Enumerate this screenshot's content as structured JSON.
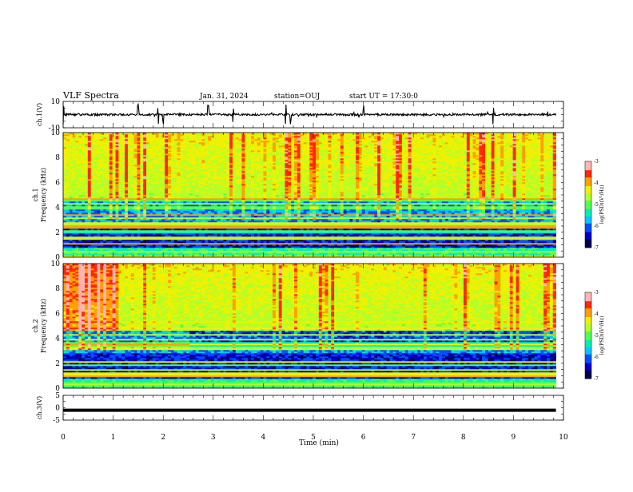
{
  "header": {
    "title": "VLF Spectra",
    "date": "Jan. 31, 2024",
    "station": "station=OUJ",
    "start_ut": "start UT =  17:30:0"
  },
  "chart_data": [
    {
      "type": "line",
      "panel": "ch1-waveform",
      "ylabel": "ch.1(V)",
      "ylim": [
        -10,
        10
      ],
      "yticks": [
        "10",
        "-10"
      ],
      "xlim": [
        0,
        10
      ],
      "series": [
        {
          "values_description": null,
          "baseline": 0,
          "typical_amplitude": 1,
          "spike_times_min": [
            0.0,
            1.5,
            1.9,
            2.0,
            2.9,
            3.4,
            4.45,
            4.55,
            6.0,
            8.6
          ]
        }
      ]
    },
    {
      "type": "heatmap",
      "panel": "ch1-spectrogram",
      "ylabel": "ch.1\nFrequency (kHz)",
      "ylim": [
        0,
        10
      ],
      "yticks": [
        "0",
        "2",
        "4",
        "6",
        "8",
        "10"
      ],
      "xlim": [
        0,
        9.85
      ],
      "colorbar": {
        "label": "log(PSD)(V²/Hz)",
        "range": [
          -7,
          -3
        ],
        "ticks": [
          "-3",
          "-4",
          "-5",
          "-6",
          "-7"
        ]
      }
    },
    {
      "type": "heatmap",
      "panel": "ch2-spectrogram",
      "ylabel": "ch.2\nFrequency (kHz)",
      "ylim": [
        0,
        10
      ],
      "yticks": [
        "0",
        "2",
        "4",
        "6",
        "8",
        "10"
      ],
      "xlim": [
        0,
        9.85
      ],
      "colorbar": {
        "label": "log(PSD)(V²/Hz)",
        "range": [
          -7,
          -3
        ],
        "ticks": [
          "-3",
          "-4",
          "-5",
          "-6",
          "-7"
        ]
      }
    },
    {
      "type": "line",
      "panel": "ch3-waveform",
      "ylabel": "ch.3(V)",
      "ylim": [
        -5,
        5
      ],
      "yticks": [
        "5",
        "0",
        "-5"
      ],
      "xlim": [
        0,
        10
      ],
      "series": [
        {
          "baseline": -1
        }
      ]
    }
  ],
  "xaxis": {
    "label": "Time (min)",
    "ticks": [
      "0",
      "1",
      "2",
      "3",
      "4",
      "5",
      "6",
      "7",
      "8",
      "9",
      "10"
    ]
  },
  "colors": {
    "colormap": [
      "#00004f",
      "#0000c8",
      "#0050ff",
      "#00c8ff",
      "#00f0b4",
      "#50ff50",
      "#b4ff28",
      "#f0f000",
      "#ffa000",
      "#ff2800",
      "#ffb4b4"
    ]
  }
}
